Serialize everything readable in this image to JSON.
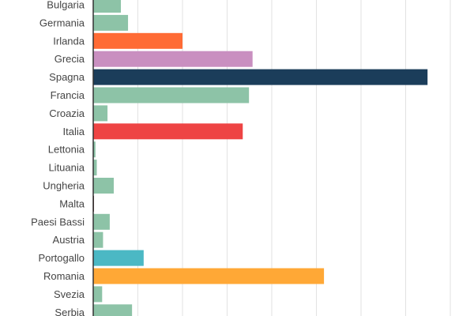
{
  "chart_data": {
    "type": "bar",
    "orientation": "horizontal",
    "title": "",
    "xlabel": "",
    "ylabel": "",
    "xlim": [
      0,
      8
    ],
    "grid": true,
    "legend": "none",
    "categories": [
      "Bulgaria",
      "Germania",
      "Irlanda",
      "Grecia",
      "Spagna",
      "Francia",
      "Croazia",
      "Italia",
      "Lettonia",
      "Lituania",
      "Ungheria",
      "Malta",
      "Paesi Bassi",
      "Austria",
      "Portogallo",
      "Romania",
      "Svezia",
      "Serbia"
    ],
    "values": [
      0.62,
      0.78,
      2.0,
      3.57,
      7.49,
      3.49,
      0.32,
      3.35,
      0.05,
      0.08,
      0.46,
      0.01,
      0.37,
      0.22,
      1.13,
      5.17,
      0.2,
      0.87
    ],
    "colors": [
      "#8dc3a7",
      "#8dc3a7",
      "#ff6b35",
      "#c98fc0",
      "#1b3d5a",
      "#8dc3a7",
      "#8dc3a7",
      "#ee4444",
      "#8dc3a7",
      "#8dc3a7",
      "#8dc3a7",
      "#5a2a2a",
      "#8dc3a7",
      "#8dc3a7",
      "#4bb8c4",
      "#ffa836",
      "#8dc3a7",
      "#8dc3a7"
    ]
  }
}
